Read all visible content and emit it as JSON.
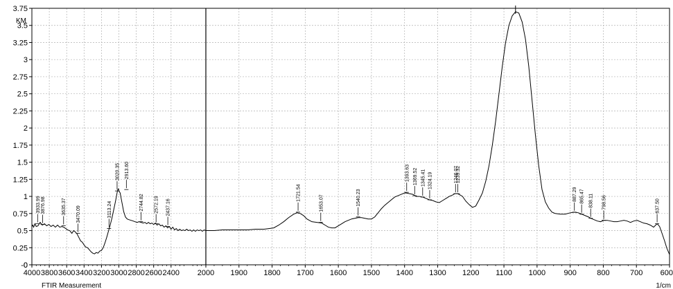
{
  "chart_data": {
    "type": "line",
    "title": "",
    "ylabel": "KM",
    "xlabel": "1/cm",
    "footer": "FTIR Measurement",
    "ylim": [
      0,
      3.75
    ],
    "xlim": [
      4000,
      600
    ],
    "axis_break_at": 2000,
    "x_ticks": [
      4000,
      3800,
      3600,
      3400,
      3200,
      3000,
      2800,
      2600,
      2400,
      2000,
      1900,
      1800,
      1700,
      1600,
      1500,
      1400,
      1300,
      1200,
      1100,
      1000,
      900,
      800,
      700,
      600
    ],
    "x_tick_labels": [
      "4000",
      "3800",
      "3600",
      "3400",
      "3200",
      "3000",
      "2800",
      "2600",
      "2400",
      "2000",
      "1900",
      "1800",
      "1700",
      "1600",
      "1500",
      "1400",
      "1300",
      "1200",
      "1100",
      "1000",
      "900",
      "800",
      "700",
      "600"
    ],
    "y_ticks": [
      0,
      0.25,
      0.5,
      0.75,
      1,
      1.25,
      1.5,
      1.75,
      2,
      2.25,
      2.5,
      2.75,
      3,
      3.25,
      3.5,
      3.75
    ],
    "y_tick_labels": [
      "0",
      "0.25",
      "0.5",
      "0.75",
      "1",
      "1.25",
      "1.5",
      "1.75",
      "2",
      "2.25",
      "2.5",
      "2.75",
      "3",
      "3.25",
      "3.5",
      "3.75"
    ],
    "y_extra_tick_labels": [
      "-0"
    ],
    "grid": true,
    "line_color": "#000000",
    "grid_color": "#b0b0b0",
    "series": [
      {
        "points": [
          [
            4000,
            0.56
          ],
          [
            3990,
            0.58
          ],
          [
            3980,
            0.55
          ],
          [
            3965,
            0.6
          ],
          [
            3950,
            0.56
          ],
          [
            3930,
            0.57
          ],
          [
            3905,
            0.62
          ],
          [
            3880,
            0.58
          ],
          [
            3855,
            0.6
          ],
          [
            3830,
            0.57
          ],
          [
            3805,
            0.59
          ],
          [
            3780,
            0.56
          ],
          [
            3755,
            0.58
          ],
          [
            3730,
            0.55
          ],
          [
            3705,
            0.58
          ],
          [
            3680,
            0.55
          ],
          [
            3655,
            0.56
          ],
          [
            3635,
            0.55
          ],
          [
            3610,
            0.53
          ],
          [
            3590,
            0.51
          ],
          [
            3565,
            0.5
          ],
          [
            3540,
            0.46
          ],
          [
            3520,
            0.5
          ],
          [
            3500,
            0.48
          ],
          [
            3480,
            0.45
          ],
          [
            3460,
            0.4
          ],
          [
            3440,
            0.35
          ],
          [
            3420,
            0.33
          ],
          [
            3400,
            0.29
          ],
          [
            3380,
            0.26
          ],
          [
            3360,
            0.25
          ],
          [
            3340,
            0.22
          ],
          [
            3320,
            0.19
          ],
          [
            3300,
            0.17
          ],
          [
            3280,
            0.16
          ],
          [
            3260,
            0.18
          ],
          [
            3240,
            0.17
          ],
          [
            3220,
            0.2
          ],
          [
            3200,
            0.21
          ],
          [
            3180,
            0.25
          ],
          [
            3160,
            0.32
          ],
          [
            3140,
            0.4
          ],
          [
            3120,
            0.49
          ],
          [
            3100,
            0.58
          ],
          [
            3080,
            0.68
          ],
          [
            3060,
            0.8
          ],
          [
            3040,
            0.92
          ],
          [
            3025,
            1.02
          ],
          [
            3015,
            1.09
          ],
          [
            3005,
            1.11
          ],
          [
            2995,
            1.07
          ],
          [
            2985,
            1.05
          ],
          [
            2975,
            0.98
          ],
          [
            2960,
            0.88
          ],
          [
            2945,
            0.78
          ],
          [
            2925,
            0.7
          ],
          [
            2905,
            0.67
          ],
          [
            2885,
            0.66
          ],
          [
            2860,
            0.65
          ],
          [
            2835,
            0.64
          ],
          [
            2815,
            0.63
          ],
          [
            2790,
            0.62
          ],
          [
            2770,
            0.63
          ],
          [
            2745,
            0.62
          ],
          [
            2720,
            0.61
          ],
          [
            2700,
            0.62
          ],
          [
            2680,
            0.6
          ],
          [
            2660,
            0.62
          ],
          [
            2640,
            0.6
          ],
          [
            2620,
            0.61
          ],
          [
            2600,
            0.59
          ],
          [
            2580,
            0.61
          ],
          [
            2560,
            0.58
          ],
          [
            2540,
            0.6
          ],
          [
            2520,
            0.57
          ],
          [
            2500,
            0.58
          ],
          [
            2480,
            0.55
          ],
          [
            2460,
            0.57
          ],
          [
            2440,
            0.54
          ],
          [
            2420,
            0.56
          ],
          [
            2400,
            0.52
          ],
          [
            2380,
            0.55
          ],
          [
            2360,
            0.51
          ],
          [
            2340,
            0.53
          ],
          [
            2320,
            0.5
          ],
          [
            2300,
            0.52
          ],
          [
            2280,
            0.5
          ],
          [
            2260,
            0.51
          ],
          [
            2240,
            0.5
          ],
          [
            2220,
            0.52
          ],
          [
            2200,
            0.5
          ],
          [
            2180,
            0.51
          ],
          [
            2160,
            0.49
          ],
          [
            2140,
            0.51
          ],
          [
            2120,
            0.49
          ],
          [
            2100,
            0.51
          ],
          [
            2080,
            0.5
          ],
          [
            2060,
            0.51
          ],
          [
            2040,
            0.49
          ],
          [
            2020,
            0.51
          ],
          [
            2000,
            0.5
          ],
          [
            1990,
            0.5
          ],
          [
            1975,
            0.5
          ],
          [
            1950,
            0.51
          ],
          [
            1925,
            0.51
          ],
          [
            1900,
            0.51
          ],
          [
            1875,
            0.51
          ],
          [
            1850,
            0.52
          ],
          [
            1825,
            0.52
          ],
          [
            1810,
            0.53
          ],
          [
            1795,
            0.54
          ],
          [
            1780,
            0.58
          ],
          [
            1765,
            0.63
          ],
          [
            1750,
            0.69
          ],
          [
            1735,
            0.74
          ],
          [
            1725,
            0.76
          ],
          [
            1715,
            0.75
          ],
          [
            1705,
            0.72
          ],
          [
            1695,
            0.67
          ],
          [
            1680,
            0.63
          ],
          [
            1665,
            0.62
          ],
          [
            1650,
            0.61
          ],
          [
            1640,
            0.58
          ],
          [
            1630,
            0.55
          ],
          [
            1620,
            0.54
          ],
          [
            1610,
            0.54
          ],
          [
            1600,
            0.57
          ],
          [
            1590,
            0.6
          ],
          [
            1580,
            0.63
          ],
          [
            1570,
            0.65
          ],
          [
            1560,
            0.67
          ],
          [
            1550,
            0.68
          ],
          [
            1540,
            0.69
          ],
          [
            1530,
            0.69
          ],
          [
            1520,
            0.68
          ],
          [
            1510,
            0.67
          ],
          [
            1500,
            0.67
          ],
          [
            1490,
            0.7
          ],
          [
            1480,
            0.76
          ],
          [
            1470,
            0.82
          ],
          [
            1460,
            0.87
          ],
          [
            1450,
            0.91
          ],
          [
            1440,
            0.95
          ],
          [
            1430,
            0.99
          ],
          [
            1420,
            1.01
          ],
          [
            1410,
            1.03
          ],
          [
            1400,
            1.05
          ],
          [
            1395,
            1.05
          ],
          [
            1385,
            1.04
          ],
          [
            1375,
            1.03
          ],
          [
            1365,
            1.0
          ],
          [
            1355,
            1.0
          ],
          [
            1345,
            0.99
          ],
          [
            1335,
            0.97
          ],
          [
            1325,
            0.95
          ],
          [
            1315,
            0.94
          ],
          [
            1305,
            0.92
          ],
          [
            1295,
            0.91
          ],
          [
            1285,
            0.94
          ],
          [
            1275,
            0.97
          ],
          [
            1265,
            1.0
          ],
          [
            1255,
            1.02
          ],
          [
            1248,
            1.04
          ],
          [
            1240,
            1.04
          ],
          [
            1232,
            1.02
          ],
          [
            1225,
            1.0
          ],
          [
            1215,
            0.93
          ],
          [
            1205,
            0.88
          ],
          [
            1195,
            0.84
          ],
          [
            1185,
            0.86
          ],
          [
            1175,
            0.95
          ],
          [
            1165,
            1.05
          ],
          [
            1155,
            1.22
          ],
          [
            1145,
            1.45
          ],
          [
            1135,
            1.75
          ],
          [
            1125,
            2.1
          ],
          [
            1115,
            2.5
          ],
          [
            1105,
            2.9
          ],
          [
            1095,
            3.25
          ],
          [
            1085,
            3.5
          ],
          [
            1075,
            3.64
          ],
          [
            1065,
            3.7
          ],
          [
            1055,
            3.68
          ],
          [
            1045,
            3.55
          ],
          [
            1035,
            3.3
          ],
          [
            1025,
            2.9
          ],
          [
            1015,
            2.4
          ],
          [
            1005,
            1.9
          ],
          [
            995,
            1.45
          ],
          [
            985,
            1.1
          ],
          [
            975,
            0.92
          ],
          [
            965,
            0.83
          ],
          [
            955,
            0.77
          ],
          [
            945,
            0.75
          ],
          [
            930,
            0.74
          ],
          [
            915,
            0.74
          ],
          [
            900,
            0.76
          ],
          [
            887,
            0.77
          ],
          [
            875,
            0.76
          ],
          [
            865,
            0.74
          ],
          [
            855,
            0.72
          ],
          [
            845,
            0.7
          ],
          [
            838,
            0.68
          ],
          [
            828,
            0.66
          ],
          [
            818,
            0.64
          ],
          [
            808,
            0.63
          ],
          [
            798,
            0.65
          ],
          [
            788,
            0.65
          ],
          [
            778,
            0.64
          ],
          [
            768,
            0.63
          ],
          [
            758,
            0.63
          ],
          [
            748,
            0.64
          ],
          [
            738,
            0.65
          ],
          [
            728,
            0.64
          ],
          [
            718,
            0.62
          ],
          [
            708,
            0.64
          ],
          [
            698,
            0.65
          ],
          [
            688,
            0.63
          ],
          [
            678,
            0.61
          ],
          [
            668,
            0.6
          ],
          [
            658,
            0.58
          ],
          [
            648,
            0.55
          ],
          [
            642,
            0.58
          ],
          [
            637,
            0.6
          ],
          [
            630,
            0.56
          ],
          [
            622,
            0.45
          ],
          [
            615,
            0.35
          ],
          [
            608,
            0.24
          ],
          [
            600,
            0.15
          ]
        ]
      }
    ],
    "peak_labels": [
      {
        "x": 3933.99,
        "label": "3933.99",
        "y": 0.6
      },
      {
        "x": 3876.98,
        "label": "3876.98",
        "y": 0.59
      },
      {
        "x": 3635.37,
        "label": "3635.37",
        "y": 0.57
      },
      {
        "x": 3470.09,
        "label": "3470.09",
        "y": 0.46
      },
      {
        "x": 3113.24,
        "label": "3113.24",
        "y": 0.53
      },
      {
        "x": 3020.35,
        "label": "3020.35",
        "y": 1.08
      },
      {
        "x": 2913.6,
        "label": "2913.60",
        "y": 1.1
      },
      {
        "x": 2744.82,
        "label": "2744.82",
        "y": 0.63
      },
      {
        "x": 2572.19,
        "label": "2572.19",
        "y": 0.6
      },
      {
        "x": 2437.16,
        "label": "2437.16",
        "y": 0.56
      },
      {
        "x": 1721.54,
        "label": "1721.54",
        "y": 0.77
      },
      {
        "x": 1653.07,
        "label": "1653.07",
        "y": 0.62
      },
      {
        "x": 1540.23,
        "label": "1540.23",
        "y": 0.7
      },
      {
        "x": 1393.63,
        "label": "1393.63",
        "y": 1.06
      },
      {
        "x": 1369.52,
        "label": "1369.52",
        "y": 1.01
      },
      {
        "x": 1345.41,
        "label": "1345.41",
        "y": 0.99
      },
      {
        "x": 1324.19,
        "label": "1324.19",
        "y": 0.95
      },
      {
        "x": 1246.07,
        "label": "1246.07",
        "y": 1.04
      },
      {
        "x": 1239.32,
        "label": "1239.32",
        "y": 1.04
      },
      {
        "x": 887.29,
        "label": "887.29",
        "y": 0.77
      },
      {
        "x": 865.47,
        "label": "865.47",
        "y": 0.74
      },
      {
        "x": 838.11,
        "label": "838.11",
        "y": 0.68
      },
      {
        "x": 798.56,
        "label": "798.56",
        "y": 0.65
      },
      {
        "x": 637.5,
        "label": "637.50",
        "y": 0.6
      }
    ]
  }
}
